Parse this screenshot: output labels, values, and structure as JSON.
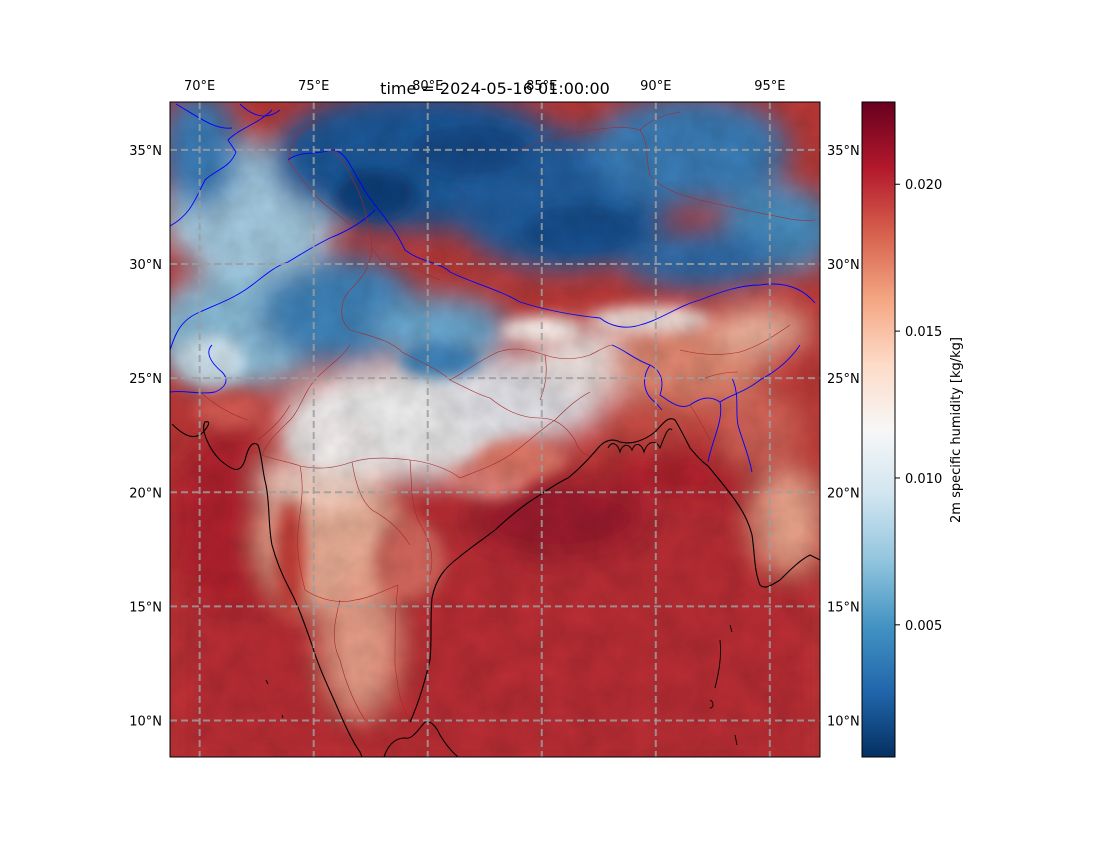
{
  "title": "time = 2024-05-16 01:00:00",
  "map": {
    "lon_range": [
      68.7,
      97.2
    ],
    "lat_range": [
      8.4,
      37.1
    ],
    "lon_ticks": [
      {
        "value": 70,
        "label": "70°E"
      },
      {
        "value": 75,
        "label": "75°E"
      },
      {
        "value": 80,
        "label": "80°E"
      },
      {
        "value": 85,
        "label": "85°E"
      },
      {
        "value": 90,
        "label": "90°E"
      },
      {
        "value": 95,
        "label": "95°E"
      }
    ],
    "lat_ticks": [
      {
        "value": 35,
        "label": "35°N"
      },
      {
        "value": 30,
        "label": "30°N"
      },
      {
        "value": 25,
        "label": "25°N"
      },
      {
        "value": 20,
        "label": "20°N"
      },
      {
        "value": 15,
        "label": "15°N"
      },
      {
        "value": 10,
        "label": "10°N"
      }
    ],
    "gridlines": true,
    "colormap": "RdBu_r"
  },
  "colorbar": {
    "label": "2m specific humidity [kg/kg]",
    "range": [
      0.0005,
      0.0228
    ],
    "ticks": [
      {
        "value": 0.005,
        "label": "0.005"
      },
      {
        "value": 0.01,
        "label": "0.010"
      },
      {
        "value": 0.015,
        "label": "0.015"
      },
      {
        "value": 0.02,
        "label": "0.020"
      }
    ]
  },
  "colors": {
    "coastline": "#000000",
    "country_border": "#0000ff",
    "state_border": "#a52a2a",
    "gridline": "#9e9e9e"
  }
}
